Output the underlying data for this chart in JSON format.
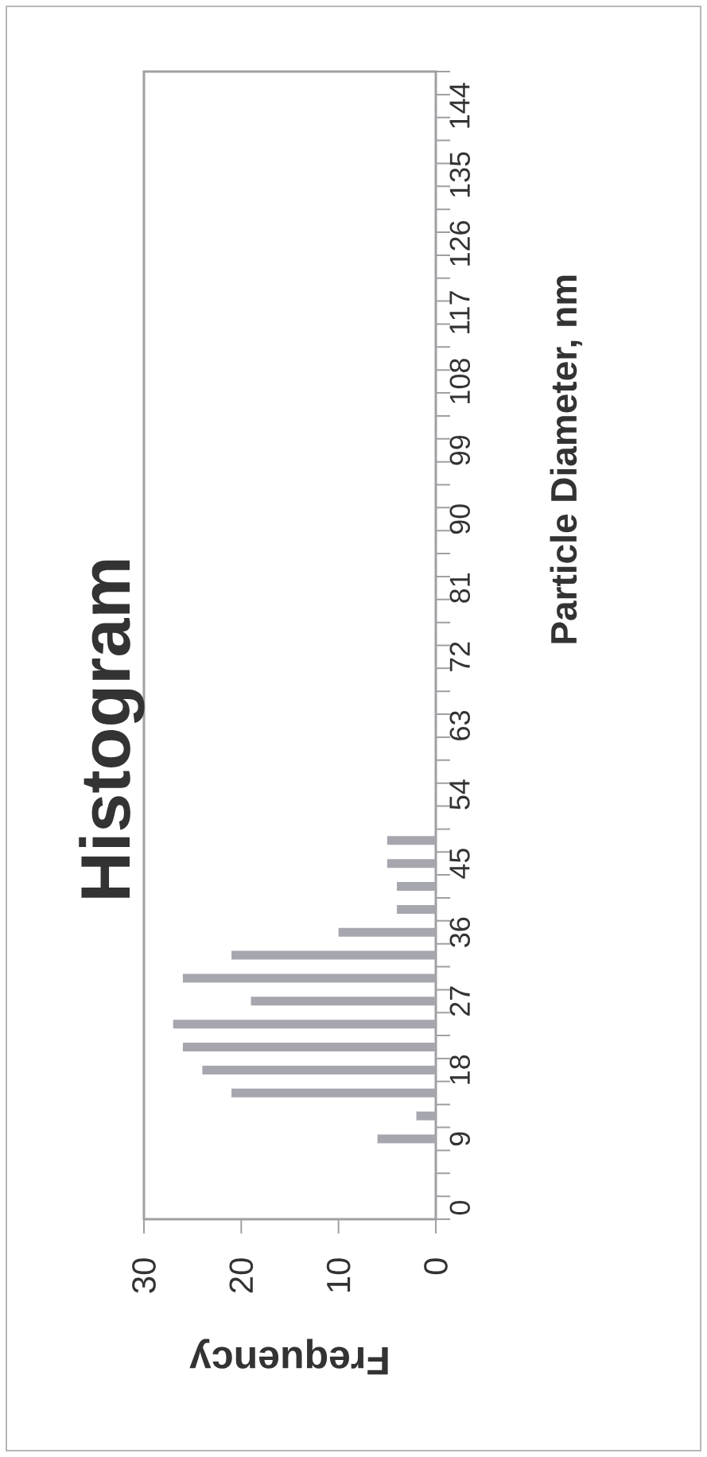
{
  "chart_data": {
    "type": "bar",
    "orientation": "horizontal",
    "title": "Histogram",
    "xlabel": "Frequency",
    "ylabel": "Particle Diameter, nm",
    "categories": [
      null,
      "144",
      null,
      null,
      "135",
      null,
      null,
      "126",
      null,
      null,
      "117",
      null,
      null,
      "108",
      null,
      null,
      "99",
      null,
      null,
      "90",
      null,
      null,
      "81",
      null,
      null,
      "72",
      null,
      null,
      "63",
      null,
      null,
      "54",
      null,
      null,
      "45",
      null,
      null,
      "36",
      null,
      null,
      "27",
      null,
      null,
      "18",
      null,
      null,
      "9",
      null,
      null,
      "0"
    ],
    "values": [
      0,
      0,
      0,
      0,
      0,
      0,
      0,
      0,
      0,
      0,
      0,
      0,
      0,
      0,
      0,
      0,
      0,
      0,
      0,
      0,
      0,
      0,
      0,
      0,
      0,
      0,
      0,
      0,
      0,
      0,
      0,
      0,
      0,
      5,
      5,
      4,
      4,
      10,
      21,
      26,
      19,
      27,
      26,
      24,
      21,
      2,
      6,
      0,
      0,
      0
    ],
    "color": "#a6a6ae",
    "xlim": [
      30,
      0
    ],
    "xticks": [
      30,
      20,
      10,
      0
    ]
  }
}
